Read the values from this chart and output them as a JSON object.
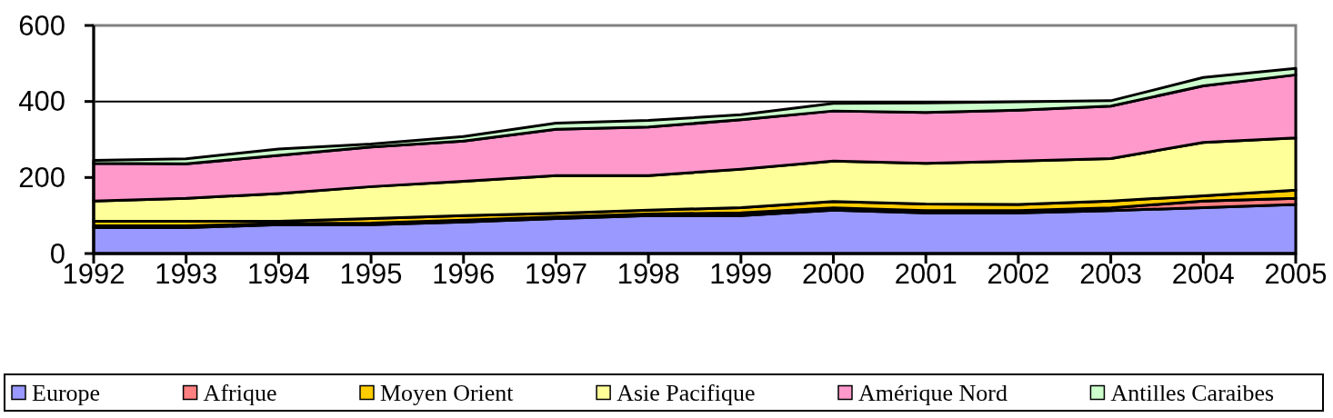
{
  "chart_data": {
    "type": "area",
    "stacked": true,
    "x": [
      1992,
      1993,
      1994,
      1995,
      1996,
      1997,
      1998,
      1999,
      2000,
      2001,
      2002,
      2003,
      2004,
      2005
    ],
    "xlim": [
      1992,
      2005
    ],
    "xticks": [
      1992,
      1993,
      1994,
      1995,
      1996,
      1997,
      1998,
      1999,
      2000,
      2001,
      2002,
      2003,
      2004,
      2005
    ],
    "ylim": [
      0,
      600
    ],
    "yticks": [
      0,
      200,
      400,
      600
    ],
    "grid": "y",
    "legend": "bottom",
    "series": [
      {
        "name": "Europe",
        "color": "#9999ff",
        "values": [
          68,
          68,
          76,
          76,
          83,
          92,
          100,
          100,
          114,
          107,
          107,
          113,
          121,
          129
        ]
      },
      {
        "name": "Afrique",
        "color": "#ff8080",
        "values": [
          5,
          5,
          3,
          4,
          5,
          4,
          4,
          7,
          6,
          6,
          6,
          7,
          17,
          16
        ]
      },
      {
        "name": "Moyen Orient",
        "color": "#ffcc00",
        "values": [
          12,
          12,
          6,
          12,
          12,
          10,
          10,
          14,
          17,
          17,
          16,
          18,
          14,
          22
        ]
      },
      {
        "name": "Asie Pacifique",
        "color": "#ffff99",
        "values": [
          53,
          60,
          73,
          84,
          90,
          99,
          91,
          101,
          106,
          107,
          114,
          112,
          140,
          137
        ]
      },
      {
        "name": "Amérique Nord",
        "color": "#ff99cc",
        "values": [
          99,
          91,
          100,
          104,
          106,
          122,
          128,
          130,
          132,
          134,
          134,
          138,
          149,
          166
        ]
      },
      {
        "name": "Antilles Caraibes",
        "color": "#ccffcc",
        "values": [
          8,
          13,
          17,
          8,
          12,
          16,
          17,
          13,
          20,
          25,
          22,
          14,
          22,
          17
        ]
      }
    ]
  }
}
